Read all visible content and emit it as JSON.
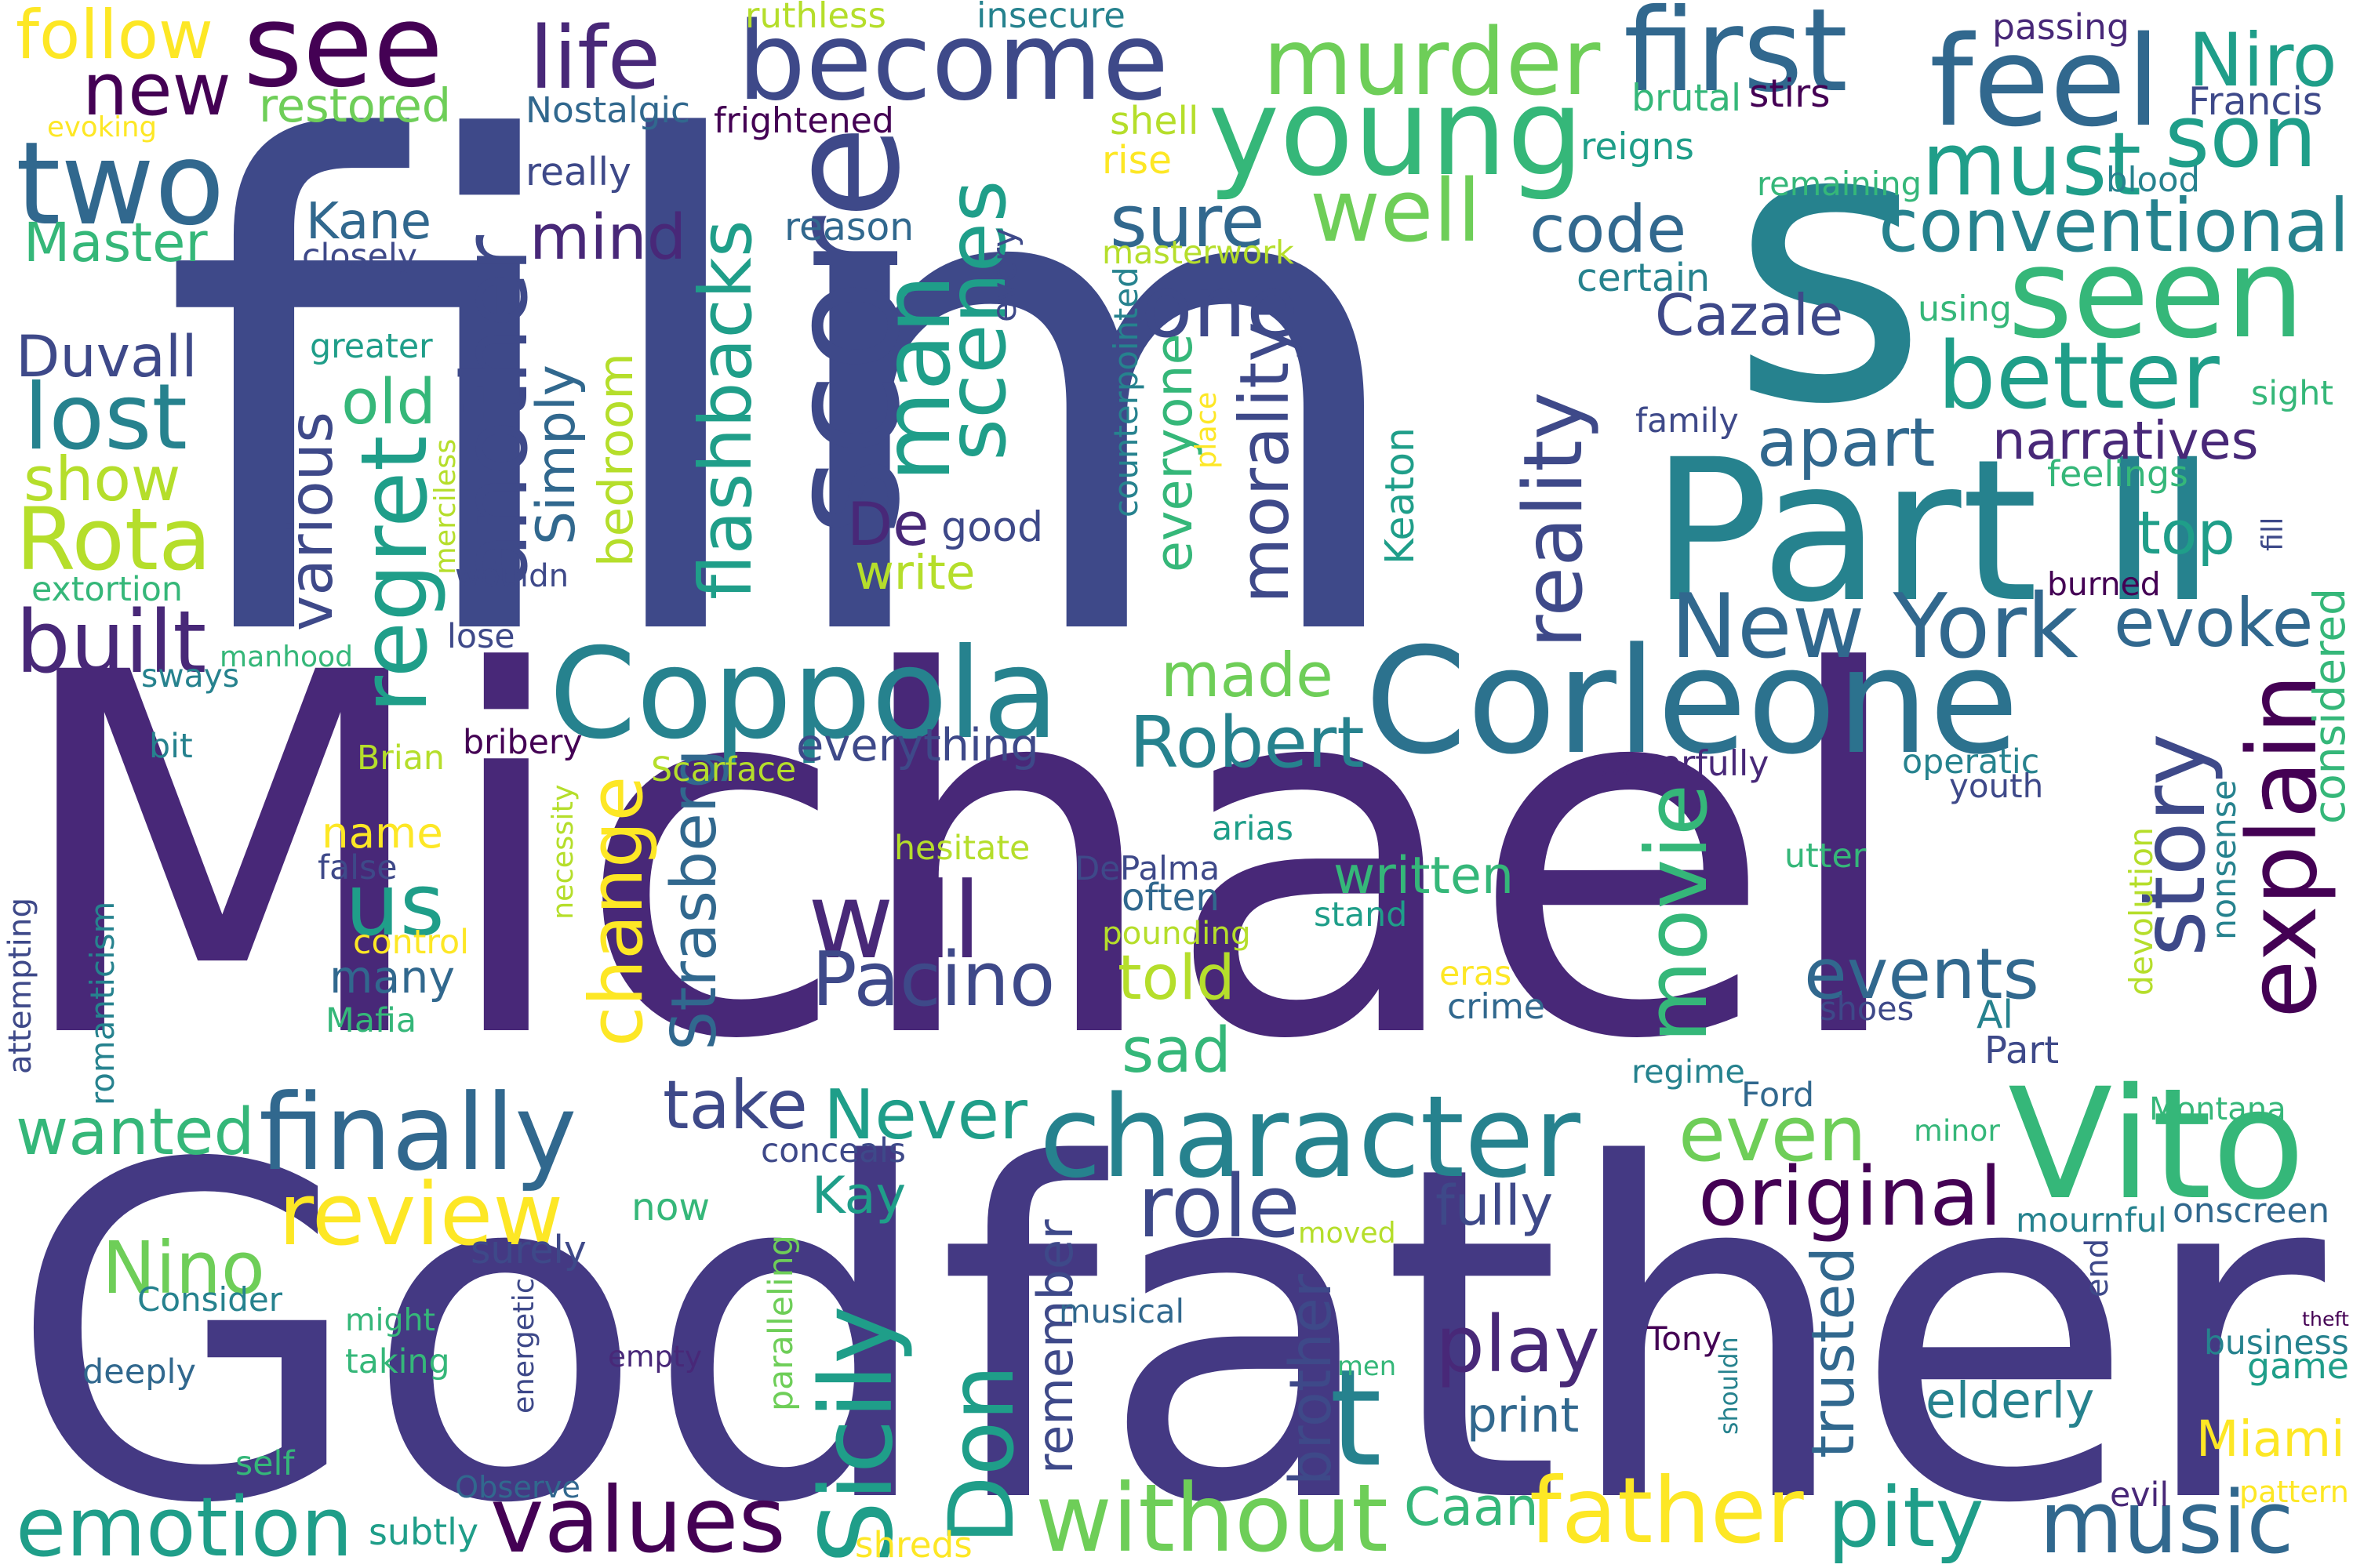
{
  "palette": {
    "dark_purple": "#440154",
    "indigo": "#482878",
    "blue_violet": "#3e4989",
    "steel_blue": "#31688e",
    "teal": "#26828e",
    "sea_green": "#1f9e89",
    "green": "#35b779",
    "light_green": "#6ece58",
    "lime": "#b5de2b",
    "yellow": "#fde725"
  },
  "words": [
    {
      "text": "Michael",
      "color": "#482878"
    },
    {
      "text": "film",
      "color": "#3e4989"
    },
    {
      "text": "Godfather",
      "color": "#443983"
    },
    {
      "text": "s",
      "color": "#26828e"
    },
    {
      "text": "Part II",
      "color": "#26828e"
    },
    {
      "text": "Coppola",
      "color": "#26828e"
    },
    {
      "text": "Corleone",
      "color": "#2c728e"
    },
    {
      "text": "another",
      "color": "#3e4989"
    },
    {
      "text": "young",
      "color": "#35b779"
    },
    {
      "text": "score",
      "color": "#3e4989"
    },
    {
      "text": "become",
      "color": "#3e4989"
    },
    {
      "text": "seen",
      "color": "#35b779"
    },
    {
      "text": "see",
      "color": "#440154"
    },
    {
      "text": "first",
      "color": "#31688e"
    },
    {
      "text": "feel",
      "color": "#31688e"
    },
    {
      "text": "murder",
      "color": "#6ece58"
    },
    {
      "text": "life",
      "color": "#482878"
    },
    {
      "text": "new",
      "color": "#440154"
    },
    {
      "text": "two",
      "color": "#31688e"
    },
    {
      "text": "follow",
      "color": "#fde725"
    },
    {
      "text": "Vito",
      "color": "#35b779"
    },
    {
      "text": "character",
      "color": "#26828e"
    },
    {
      "text": "finally",
      "color": "#31688e"
    },
    {
      "text": "review",
      "color": "#fde725"
    },
    {
      "text": "explain",
      "color": "#440154"
    },
    {
      "text": "story",
      "color": "#3e4989"
    },
    {
      "text": "will",
      "color": "#482878"
    },
    {
      "text": "Pacino",
      "color": "#3e4989"
    },
    {
      "text": "movie",
      "color": "#35b779"
    },
    {
      "text": "emotion",
      "color": "#1f9e89"
    },
    {
      "text": "values",
      "color": "#440154"
    },
    {
      "text": "without",
      "color": "#6ece58"
    },
    {
      "text": "father",
      "color": "#fde725"
    },
    {
      "text": "pity",
      "color": "#1f9e89"
    },
    {
      "text": "music",
      "color": "#31688e"
    },
    {
      "text": "Don",
      "color": "#1f9e89"
    },
    {
      "text": "Sicily",
      "color": "#1f9e89"
    },
    {
      "text": "t",
      "color": "#26828e"
    },
    {
      "text": "original",
      "color": "#440154"
    },
    {
      "text": "events",
      "color": "#31688e"
    },
    {
      "text": "even",
      "color": "#6ece58"
    },
    {
      "text": "play",
      "color": "#482878"
    },
    {
      "text": "role",
      "color": "#3e4989"
    },
    {
      "text": "New York",
      "color": "#31688e"
    },
    {
      "text": "must",
      "color": "#1f9e89"
    },
    {
      "text": "son",
      "color": "#1f9e89"
    },
    {
      "text": "Niro",
      "color": "#1f9e89"
    },
    {
      "text": "conventional",
      "color": "#26828e"
    },
    {
      "text": "better",
      "color": "#1f9e89"
    },
    {
      "text": "one",
      "color": "#3e4989"
    },
    {
      "text": "well",
      "color": "#6ece58"
    },
    {
      "text": "code",
      "color": "#31688e"
    },
    {
      "text": "sure",
      "color": "#31688e"
    },
    {
      "text": "mind",
      "color": "#482878"
    },
    {
      "text": "scenes",
      "color": "#1f9e89"
    },
    {
      "text": "man",
      "color": "#1f9e89"
    },
    {
      "text": "flashbacks",
      "color": "#1f9e89"
    },
    {
      "text": "regret",
      "color": "#1f9e89"
    },
    {
      "text": "change",
      "color": "#fde725"
    },
    {
      "text": "Rota",
      "color": "#b5de2b"
    },
    {
      "text": "lost",
      "color": "#26828e"
    },
    {
      "text": "show",
      "color": "#b5de2b"
    },
    {
      "text": "built",
      "color": "#482878"
    },
    {
      "text": "Duvall",
      "color": "#3e4989"
    },
    {
      "text": "Master",
      "color": "#35b779"
    },
    {
      "text": "restored",
      "color": "#6ece58"
    },
    {
      "text": "Nostalgic",
      "color": "#31688e"
    },
    {
      "text": "Kane",
      "color": "#31688e"
    },
    {
      "text": "Cazale",
      "color": "#3e4989"
    },
    {
      "text": "apart",
      "color": "#31688e"
    },
    {
      "text": "narratives",
      "color": "#482878"
    },
    {
      "text": "top",
      "color": "#1f9e89"
    },
    {
      "text": "evoke",
      "color": "#31688e"
    },
    {
      "text": "made",
      "color": "#6ece58"
    },
    {
      "text": "Robert",
      "color": "#26828e"
    },
    {
      "text": "everything",
      "color": "#3e4989"
    },
    {
      "text": "Never",
      "color": "#1f9e89"
    },
    {
      "text": "take",
      "color": "#3e4989"
    },
    {
      "text": "wanted",
      "color": "#35b779"
    },
    {
      "text": "Nino",
      "color": "#6ece58"
    },
    {
      "text": "us",
      "color": "#1f9e89"
    },
    {
      "text": "name",
      "color": "#fde725"
    },
    {
      "text": "many",
      "color": "#31688e"
    },
    {
      "text": "written",
      "color": "#35b779"
    },
    {
      "text": "told",
      "color": "#b5de2b"
    },
    {
      "text": "sad",
      "color": "#35b779"
    },
    {
      "text": "Kay",
      "color": "#1f9e89"
    },
    {
      "text": "fully",
      "color": "#3e4989"
    },
    {
      "text": "game",
      "color": "#1f9e89"
    },
    {
      "text": "elderly",
      "color": "#26828e"
    },
    {
      "text": "Miami",
      "color": "#fde725"
    },
    {
      "text": "Caan",
      "color": "#35b779"
    },
    {
      "text": "reality",
      "color": "#3e4989"
    },
    {
      "text": "morality",
      "color": "#3e4989"
    },
    {
      "text": "Keaton",
      "color": "#1f9e89"
    },
    {
      "text": "everyone",
      "color": "#35b779"
    },
    {
      "text": "considered",
      "color": "#35b779"
    },
    {
      "text": "De",
      "color": "#482878"
    },
    {
      "text": "good",
      "color": "#3e4989"
    },
    {
      "text": "write",
      "color": "#b5de2b"
    },
    {
      "text": "various",
      "color": "#3e4989"
    },
    {
      "text": "old",
      "color": "#35b779"
    },
    {
      "text": "Simply",
      "color": "#31688e"
    },
    {
      "text": "bedroom",
      "color": "#b5de2b"
    },
    {
      "text": "Strasberg",
      "color": "#31688e"
    },
    {
      "text": "remember",
      "color": "#3e4989"
    },
    {
      "text": "brother",
      "color": "#3e4989"
    },
    {
      "text": "trusted",
      "color": "#31688e"
    },
    {
      "text": "print",
      "color": "#31688e"
    },
    {
      "text": "ruthless",
      "color": "#b5de2b"
    },
    {
      "text": "insecure",
      "color": "#26828e"
    },
    {
      "text": "passing",
      "color": "#482878"
    },
    {
      "text": "frightened",
      "color": "#440154"
    },
    {
      "text": "evoking",
      "color": "#fde725"
    },
    {
      "text": "Francis",
      "color": "#3e4989"
    },
    {
      "text": "brutal",
      "color": "#35b779"
    },
    {
      "text": "stirs",
      "color": "#440154"
    },
    {
      "text": "shell",
      "color": "#b5de2b"
    },
    {
      "text": "reigns",
      "color": "#1f9e89"
    },
    {
      "text": "rise",
      "color": "#fde725"
    },
    {
      "text": "remaining",
      "color": "#35b779"
    },
    {
      "text": "blood",
      "color": "#26828e"
    },
    {
      "text": "really",
      "color": "#3e4989"
    },
    {
      "text": "reason",
      "color": "#31688e"
    },
    {
      "text": "closely",
      "color": "#3e4989"
    },
    {
      "text": "masterwork",
      "color": "#b5de2b"
    },
    {
      "text": "every",
      "color": "#3e4989"
    },
    {
      "text": "certain",
      "color": "#26828e"
    },
    {
      "text": "using",
      "color": "#35b779"
    },
    {
      "text": "greater",
      "color": "#1f9e89"
    },
    {
      "text": "family",
      "color": "#3e4989"
    },
    {
      "text": "sight",
      "color": "#35b779"
    },
    {
      "text": "feelings",
      "color": "#35b779"
    },
    {
      "text": "counterpointed",
      "color": "#26828e"
    },
    {
      "text": "place",
      "color": "#fde725"
    },
    {
      "text": "merciless",
      "color": "#b5de2b"
    },
    {
      "text": "wouldn",
      "color": "#3e4989"
    },
    {
      "text": "extortion",
      "color": "#35b779"
    },
    {
      "text": "lose",
      "color": "#3e4989"
    },
    {
      "text": "manhood",
      "color": "#35b779"
    },
    {
      "text": "sways",
      "color": "#26828e"
    },
    {
      "text": "burned",
      "color": "#440154"
    },
    {
      "text": "fill",
      "color": "#3e4989"
    },
    {
      "text": "bit",
      "color": "#26828e"
    },
    {
      "text": "Brian",
      "color": "#b5de2b"
    },
    {
      "text": "bribery",
      "color": "#440154"
    },
    {
      "text": "Scarface",
      "color": "#b5de2b"
    },
    {
      "text": "DePalma",
      "color": "#3e4989"
    },
    {
      "text": "powerfully",
      "color": "#482878"
    },
    {
      "text": "operatic",
      "color": "#26828e"
    },
    {
      "text": "youth",
      "color": "#3e4989"
    },
    {
      "text": "false",
      "color": "#3e4989"
    },
    {
      "text": "hesitate",
      "color": "#b5de2b"
    },
    {
      "text": "arias",
      "color": "#1f9e89"
    },
    {
      "text": "utter",
      "color": "#35b779"
    },
    {
      "text": "nonsense",
      "color": "#26828e"
    },
    {
      "text": "devolution",
      "color": "#b5de2b"
    },
    {
      "text": "attempting",
      "color": "#3e4989"
    },
    {
      "text": "romanticism",
      "color": "#26828e"
    },
    {
      "text": "necessity",
      "color": "#b5de2b"
    },
    {
      "text": "control",
      "color": "#fde725"
    },
    {
      "text": "often",
      "color": "#31688e"
    },
    {
      "text": "stand",
      "color": "#1f9e89"
    },
    {
      "text": "pounding",
      "color": "#b5de2b"
    },
    {
      "text": "eras",
      "color": "#fde725"
    },
    {
      "text": "crime",
      "color": "#31688e"
    },
    {
      "text": "shoes",
      "color": "#3e4989"
    },
    {
      "text": "Al",
      "color": "#26828e"
    },
    {
      "text": "Mafia",
      "color": "#35b779"
    },
    {
      "text": "Part",
      "color": "#3e4989"
    },
    {
      "text": "regime",
      "color": "#26828e"
    },
    {
      "text": "Ford",
      "color": "#31688e"
    },
    {
      "text": "Montana",
      "color": "#35b779"
    },
    {
      "text": "minor",
      "color": "#35b779"
    },
    {
      "text": "conceals",
      "color": "#3e4989"
    },
    {
      "text": "now",
      "color": "#35b779"
    },
    {
      "text": "surely",
      "color": "#3e4989"
    },
    {
      "text": "moved",
      "color": "#b5de2b"
    },
    {
      "text": "mournful",
      "color": "#26828e"
    },
    {
      "text": "onscreen",
      "color": "#31688e"
    },
    {
      "text": "end",
      "color": "#3e4989"
    },
    {
      "text": "theft",
      "color": "#440154"
    },
    {
      "text": "Consider",
      "color": "#26828e"
    },
    {
      "text": "paralleling",
      "color": "#6ece58"
    },
    {
      "text": "energetic",
      "color": "#3e4989"
    },
    {
      "text": "musical",
      "color": "#31688e"
    },
    {
      "text": "business",
      "color": "#26828e"
    },
    {
      "text": "might",
      "color": "#35b779"
    },
    {
      "text": "taking",
      "color": "#35b779"
    },
    {
      "text": "empty",
      "color": "#482878"
    },
    {
      "text": "Tony",
      "color": "#440154"
    },
    {
      "text": "men",
      "color": "#35b779"
    },
    {
      "text": "shouldn",
      "color": "#26828e"
    },
    {
      "text": "deeply",
      "color": "#31688e"
    },
    {
      "text": "self",
      "color": "#35b779"
    },
    {
      "text": "Observe",
      "color": "#31688e"
    },
    {
      "text": "evil",
      "color": "#482878"
    },
    {
      "text": "pattern",
      "color": "#fde725"
    },
    {
      "text": "subtly",
      "color": "#1f9e89"
    },
    {
      "text": "shreds",
      "color": "#fde725"
    }
  ]
}
